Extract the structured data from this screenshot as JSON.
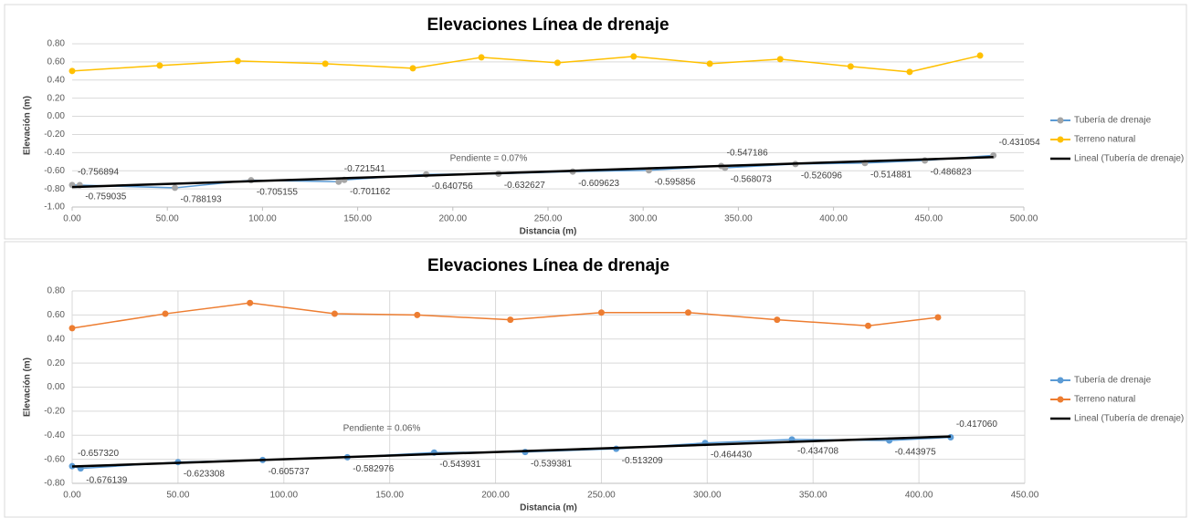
{
  "chart_data": [
    {
      "type": "line",
      "title": "Elevaciones Línea de drenaje",
      "xlabel": "Distancia (m)",
      "ylabel": "Elevación (m)",
      "annotation": "Pendiente = 0.07%",
      "xlim": [
        0,
        500
      ],
      "xticks": [
        {
          "value": 0,
          "label": "0.00"
        },
        {
          "value": 50,
          "label": "50.00"
        },
        {
          "value": 100,
          "label": "100.00"
        },
        {
          "value": 150,
          "label": "150.00"
        },
        {
          "value": 200,
          "label": "200.00"
        },
        {
          "value": 250,
          "label": "250.00"
        },
        {
          "value": 300,
          "label": "300.00"
        },
        {
          "value": 350,
          "label": "350.00"
        },
        {
          "value": 400,
          "label": "400.00"
        },
        {
          "value": 450,
          "label": "450.00"
        },
        {
          "value": 500,
          "label": "500.00"
        }
      ],
      "ylim": [
        -1,
        0.8
      ],
      "yticks": [
        {
          "value": -1,
          "label": "-1.00"
        },
        {
          "value": -0.8,
          "label": "-0.80"
        },
        {
          "value": -0.6,
          "label": "-0.60"
        },
        {
          "value": -0.4,
          "label": "-0.40"
        },
        {
          "value": -0.2,
          "label": "-0.20"
        },
        {
          "value": 0,
          "label": "0.00"
        },
        {
          "value": 0.2,
          "label": "0.20"
        },
        {
          "value": 0.4,
          "label": "0.40"
        },
        {
          "value": 0.6,
          "label": "0.60"
        },
        {
          "value": 0.8,
          "label": "0.80"
        }
      ],
      "grid": true,
      "xgrid": false,
      "legend": "right",
      "series": [
        {
          "name": "Tubería de drenaje",
          "color": "#5b9bd5",
          "marker_color": "#a5a5a5",
          "labels": true,
          "x": [
            0,
            4,
            54,
            94,
            140,
            143,
            186,
            224,
            263,
            303,
            341,
            343,
            380,
            416.5,
            448,
            484
          ],
          "values": [
            -0.756894,
            -0.759035,
            -0.788193,
            -0.705155,
            -0.721541,
            -0.701162,
            -0.640756,
            -0.632627,
            -0.609623,
            -0.595856,
            -0.547186,
            -0.568073,
            -0.526096,
            -0.514881,
            -0.486823,
            -0.431054
          ]
        },
        {
          "name": "Terreno natural",
          "color": "#ffc000",
          "marker_color": "#ffc000",
          "x": [
            0,
            46,
            87,
            133,
            179,
            215,
            255,
            295,
            335,
            372,
            409,
            440,
            477
          ],
          "values": [
            0.5,
            0.56,
            0.61,
            0.58,
            0.53,
            0.65,
            0.59,
            0.66,
            0.58,
            0.63,
            0.55,
            0.49,
            0.67
          ]
        },
        {
          "name": "Lineal (Tubería de drenaje)",
          "color": "#000000",
          "width": 2.5,
          "x": [
            0,
            484
          ],
          "values": [
            -0.78,
            -0.45
          ]
        }
      ]
    },
    {
      "type": "line",
      "title": "Elevaciones Línea de drenaje",
      "xlabel": "Distancia (m)",
      "ylabel": "Elevación (m)",
      "annotation": "Pendiente = 0.06%",
      "xlim": [
        0,
        450
      ],
      "xticks": [
        {
          "value": 0,
          "label": "0.00"
        },
        {
          "value": 50,
          "label": "50.00"
        },
        {
          "value": 100,
          "label": "100.00"
        },
        {
          "value": 150,
          "label": "150.00"
        },
        {
          "value": 200,
          "label": "200.00"
        },
        {
          "value": 250,
          "label": "250.00"
        },
        {
          "value": 300,
          "label": "300.00"
        },
        {
          "value": 350,
          "label": "350.00"
        },
        {
          "value": 400,
          "label": "400.00"
        },
        {
          "value": 450,
          "label": "450.00"
        }
      ],
      "ylim": [
        -0.8,
        0.8
      ],
      "yticks": [
        {
          "value": -0.8,
          "label": "-0.80"
        },
        {
          "value": -0.6,
          "label": "-0.60"
        },
        {
          "value": -0.4,
          "label": "-0.40"
        },
        {
          "value": -0.2,
          "label": "-0.20"
        },
        {
          "value": 0,
          "label": "0.00"
        },
        {
          "value": 0.2,
          "label": "0.20"
        },
        {
          "value": 0.4,
          "label": "0.40"
        },
        {
          "value": 0.6,
          "label": "0.60"
        },
        {
          "value": 0.8,
          "label": "0.80"
        }
      ],
      "grid": true,
      "xgrid": true,
      "legend": "right",
      "series": [
        {
          "name": "Tubería de drenaje",
          "color": "#5b9bd5",
          "marker_color": "#5b9bd5",
          "labels": true,
          "x": [
            0,
            4,
            50,
            90,
            130,
            171,
            214,
            257,
            299,
            340,
            386,
            415
          ],
          "values": [
            -0.65732,
            -0.676139,
            -0.623308,
            -0.605737,
            -0.582976,
            -0.543931,
            -0.539381,
            -0.513209,
            -0.46443,
            -0.434708,
            -0.443975,
            -0.41706
          ],
          "value_labels": [
            "-0.657320",
            "-0.676139",
            "-0.623308",
            "-0.605737",
            "-0.582976",
            "-0.543931",
            "-0.539381",
            "-0.513209",
            "-0.464430",
            "-0.434708",
            "-0.443975",
            "-0.417060"
          ]
        },
        {
          "name": "Terreno natural",
          "color": "#ed7d31",
          "marker_color": "#ed7d31",
          "x": [
            0,
            44,
            84,
            124,
            163,
            207,
            250,
            291,
            333,
            376,
            409
          ],
          "values": [
            0.49,
            0.61,
            0.7,
            0.61,
            0.6,
            0.56,
            0.62,
            0.62,
            0.56,
            0.51,
            0.58
          ]
        },
        {
          "name": "Lineal (Tubería de drenaje)",
          "color": "#000000",
          "width": 2.5,
          "x": [
            0,
            415
          ],
          "values": [
            -0.66,
            -0.41
          ]
        }
      ]
    }
  ]
}
